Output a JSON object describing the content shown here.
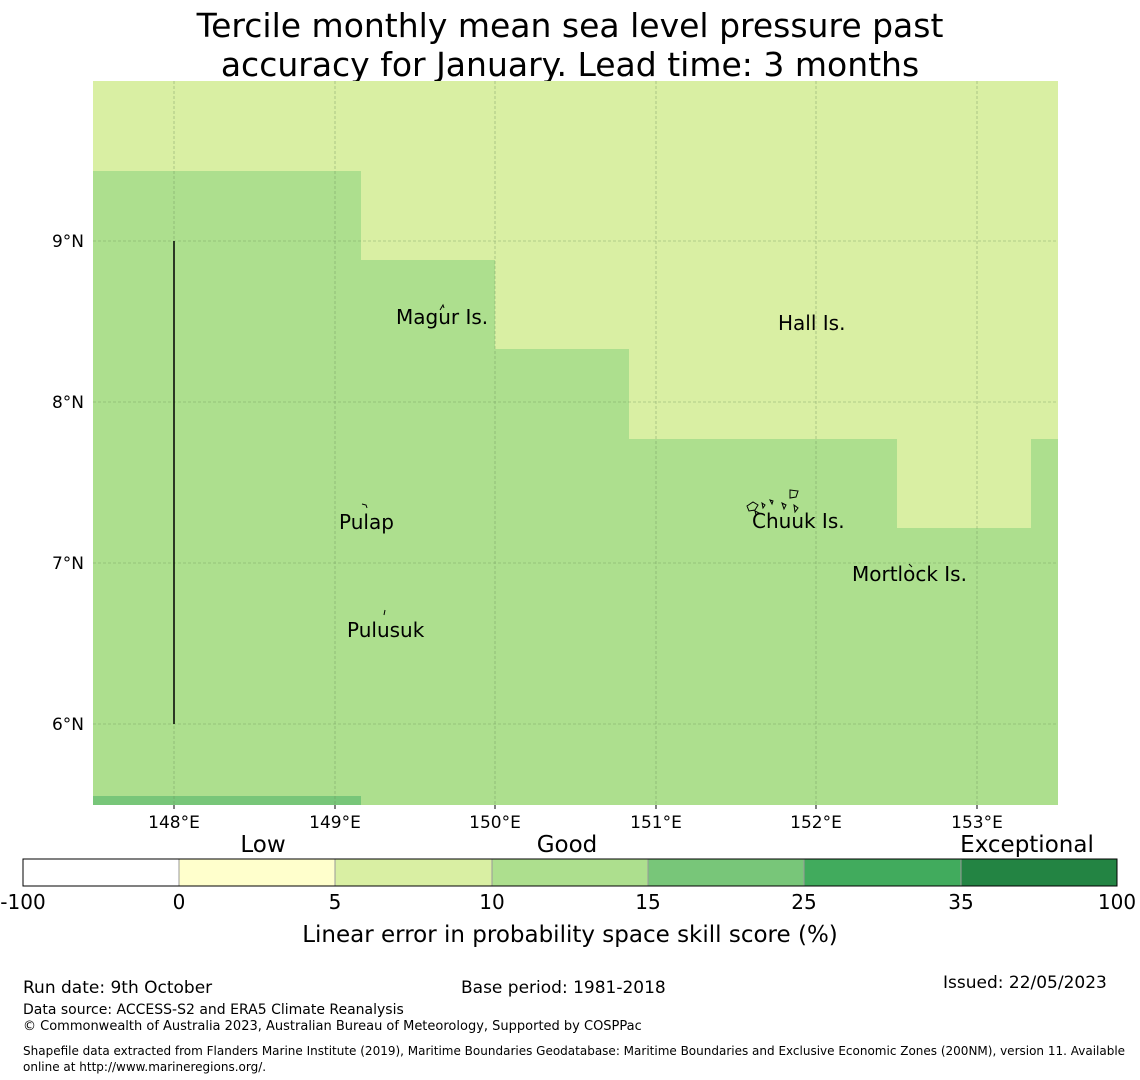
{
  "title_line1": "Tercile monthly mean sea level pressure past",
  "title_line2": "accuracy for January. Lead time: 3 months",
  "map": {
    "lon_ticks": [
      "148°E",
      "149°E",
      "150°E",
      "151°E",
      "152°E",
      "153°E"
    ],
    "lat_ticks": [
      "9°N",
      "8°N",
      "7°N",
      "6°N"
    ],
    "places": [
      {
        "name": "Magur Is."
      },
      {
        "name": "Hall Is."
      },
      {
        "name": "Pulap"
      },
      {
        "name": "Chuuk Is."
      },
      {
        "name": "Mortlock Is."
      },
      {
        "name": "Pulusuk"
      }
    ],
    "colors": {
      "skill_5_10": "#d9efa3",
      "skill_10_15": "#addf8e",
      "skill_15_25": "#78c679",
      "grid": "#6b8f5a",
      "land_outline": "#000000"
    }
  },
  "legend": {
    "category_labels": [
      "Low",
      "Good",
      "Exceptional"
    ],
    "ticks": [
      "-100",
      "0",
      "5",
      "10",
      "15",
      "25",
      "35",
      "100"
    ],
    "colors": [
      "#ffffff",
      "#ffffcc",
      "#d9efa3",
      "#addf8e",
      "#78c679",
      "#41ab5d",
      "#238443"
    ],
    "axis_label": "Linear error in probability space skill score (%)"
  },
  "footer": {
    "run_date": "Run date: 9th October",
    "base_period": "Base period: 1981-2018",
    "issued": "Issued: 22/05/2023",
    "data_source": "Data source: ACCESS-S2 and ERA5 Climate Reanalysis",
    "copyright": "© Commonwealth of Australia 2023, Australian Bureau of Meteorology, Supported by COSPPac",
    "shapefile": "Shapefile data extracted from Flanders Marine Institute (2019), Maritime Boundaries Geodatabase: Maritime Boundaries and Exclusive Economic Zones (200NM), version 11. Available online at http://www.marineregions.org/."
  }
}
